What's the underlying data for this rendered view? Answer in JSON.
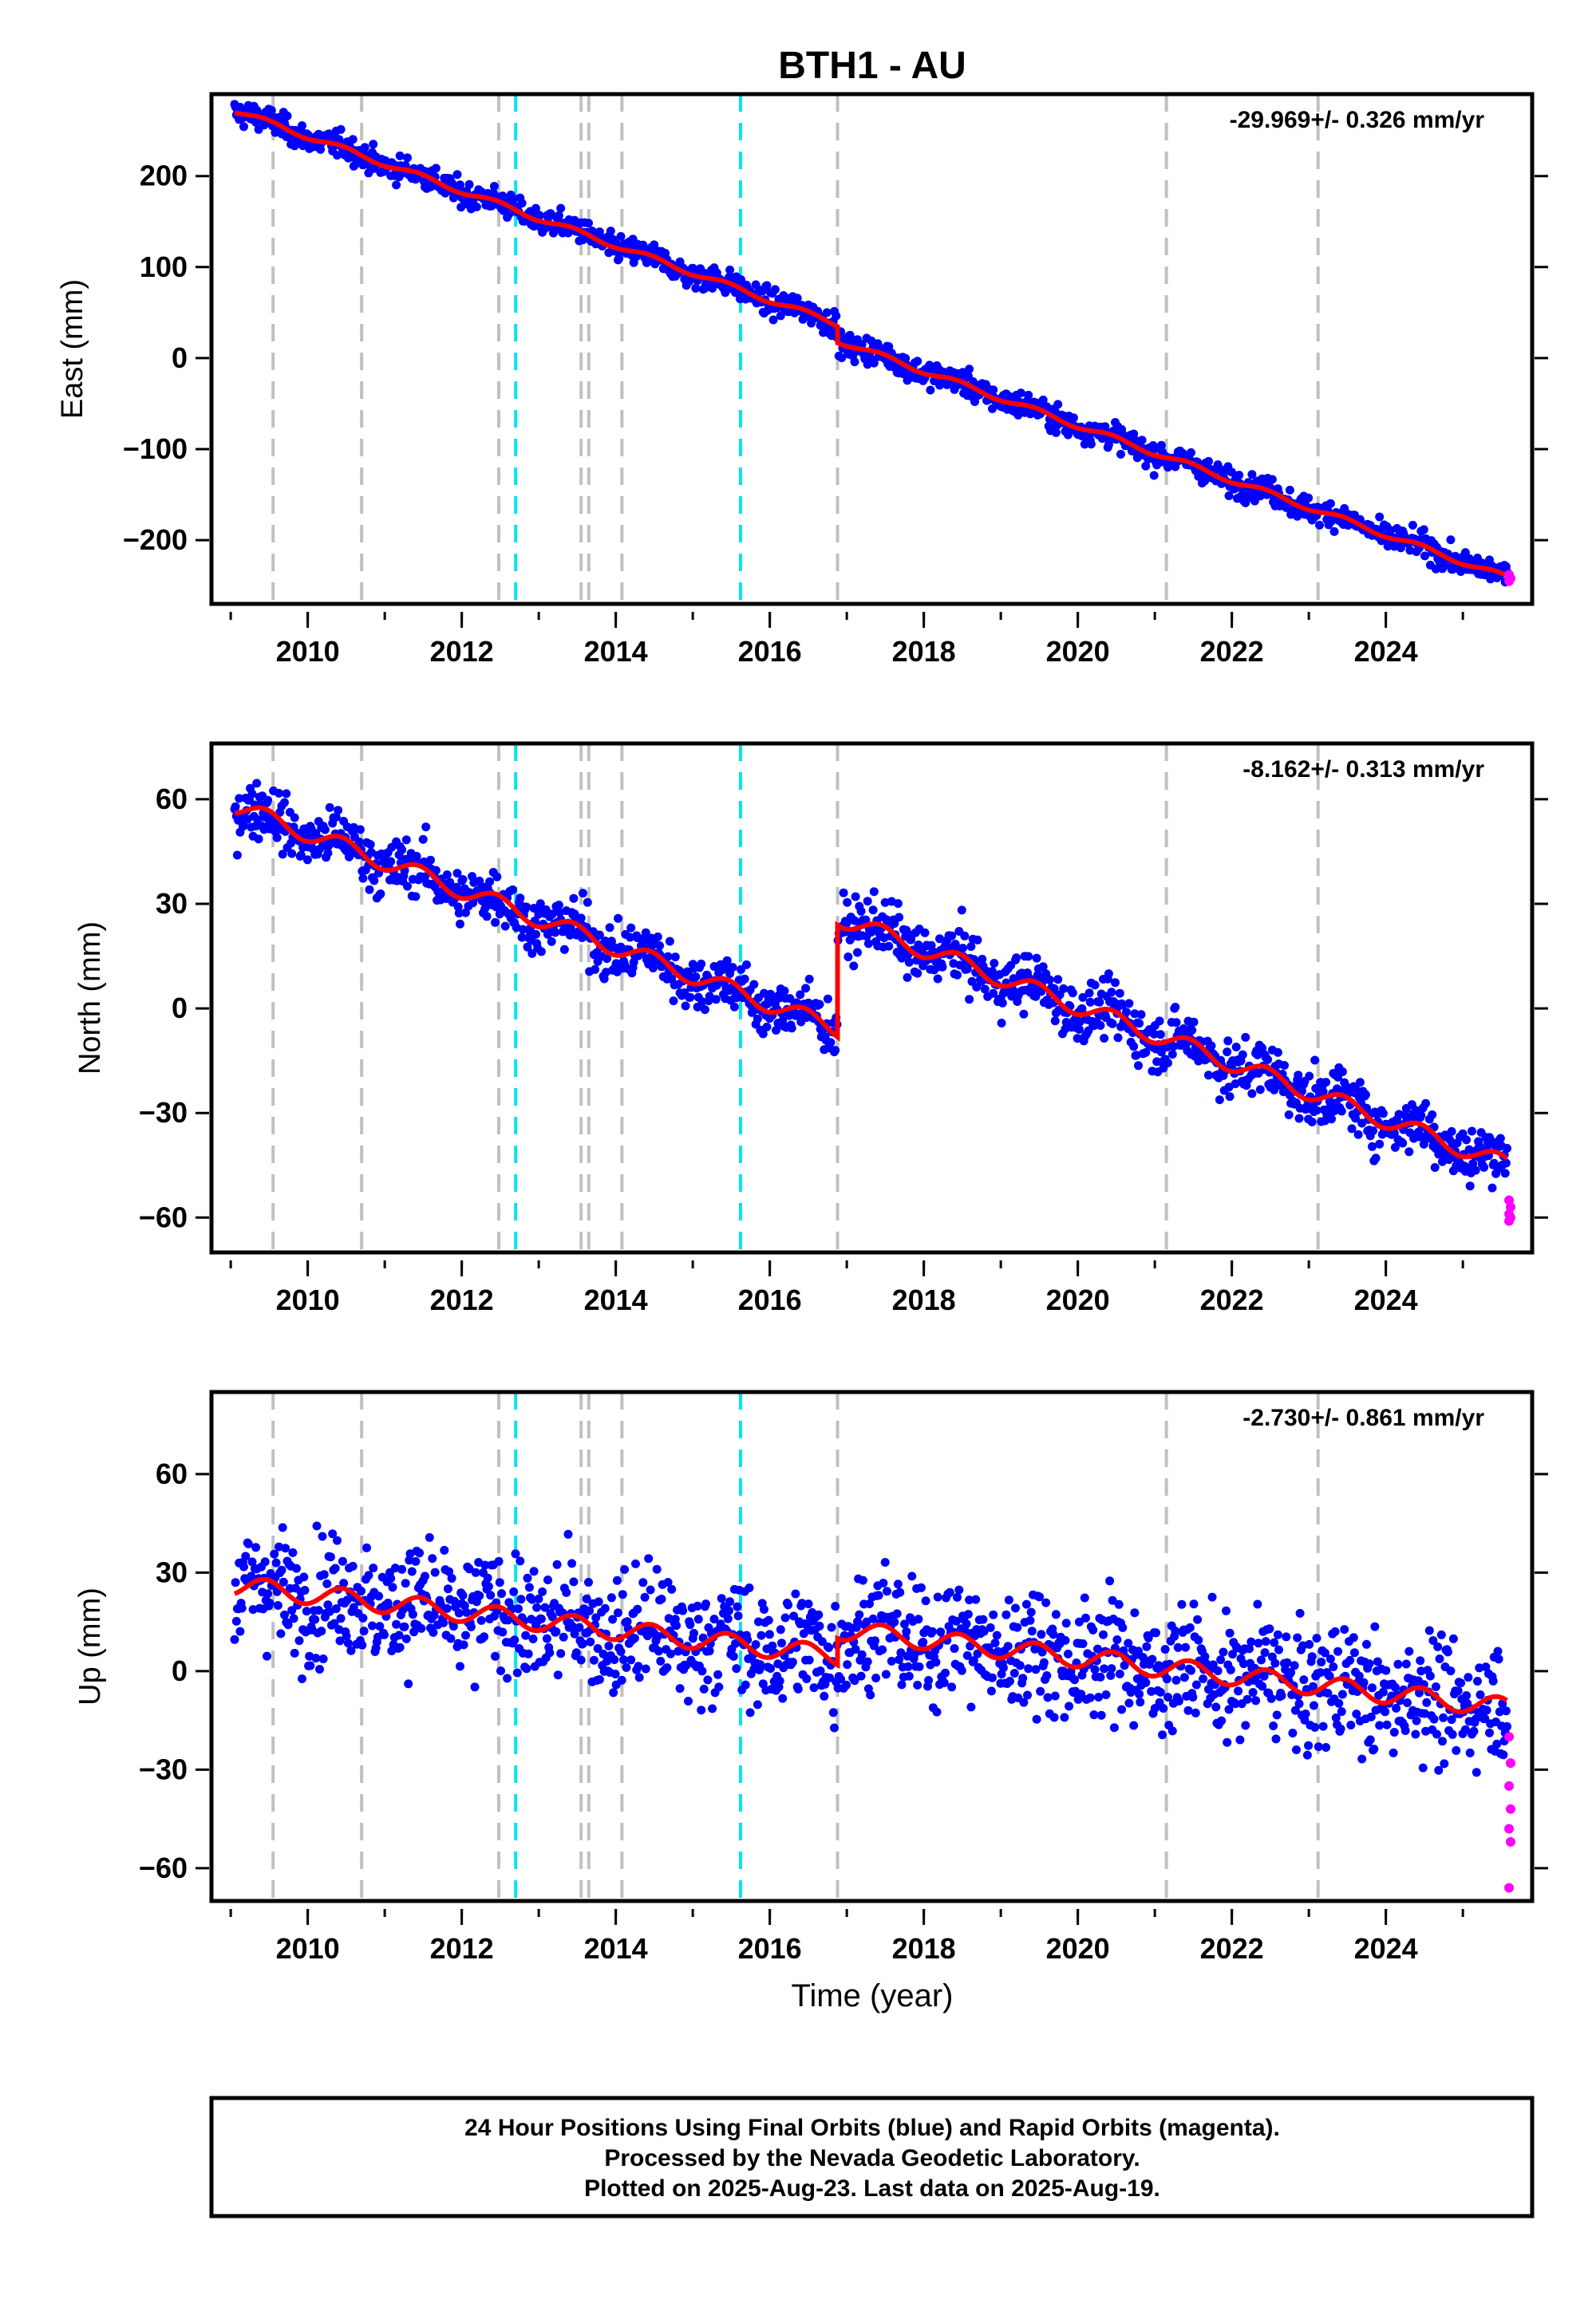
{
  "title": "BTH1 - AU",
  "xlabel": "Time (year)",
  "colors": {
    "final_orbits": "#0000ff",
    "rapid_orbits": "#ff00ff",
    "model": "#ff0000",
    "event_line": "#c0c0c0",
    "equipment_line": "#00e5ee"
  },
  "footnote": [
    "24 Hour Positions Using Final Orbits (blue) and Rapid Orbits (magenta).",
    "Processed by the Nevada Geodetic Laboratory.",
    "Plotted on 2025-Aug-23. Last data on 2025-Aug-19."
  ],
  "chart_data": [
    {
      "type": "scatter",
      "title": "BTH1 - AU",
      "ylabel": "East (mm)",
      "rate_label": "-29.969+/- 0.326 mm/yr",
      "xlim": [
        2008.75,
        2025.9
      ],
      "ylim": [
        -270,
        290
      ],
      "yticks": [
        -200,
        -100,
        0,
        100,
        200
      ],
      "xticks": [
        2010,
        2012,
        2014,
        2016,
        2018,
        2020,
        2022,
        2024
      ],
      "event_lines_gray": [
        2009.55,
        2010.7,
        2012.48,
        2013.55,
        2013.65,
        2014.08,
        2016.88,
        2021.15,
        2023.12
      ],
      "event_lines_cyan": [
        2012.7,
        2015.62
      ],
      "model": {
        "start_year": 2009.05,
        "start_value": 272,
        "rate": -29.969,
        "offset_year": 2016.88,
        "offset": -18,
        "seasonal_amp": 3,
        "noise": 7
      },
      "rapid_tail": [
        -238,
        -242,
        -245
      ],
      "grid": false,
      "legend": "none"
    },
    {
      "type": "scatter",
      "ylabel": "North (mm)",
      "rate_label": "-8.162+/- 0.313 mm/yr",
      "xlim": [
        2008.75,
        2025.9
      ],
      "ylim": [
        -70,
        76
      ],
      "yticks": [
        -60,
        -30,
        0,
        30,
        60
      ],
      "xticks": [
        2010,
        2012,
        2014,
        2016,
        2018,
        2020,
        2022,
        2024
      ],
      "event_lines_gray": [
        2009.55,
        2010.7,
        2012.48,
        2013.55,
        2013.65,
        2014.08,
        2016.88,
        2021.15,
        2023.12
      ],
      "event_lines_cyan": [
        2012.7,
        2015.62
      ],
      "model": {
        "start_year": 2009.05,
        "start_value": 58,
        "rate": -8.162,
        "offset_year": 2016.88,
        "offset": 32,
        "seasonal_amp": 2.5,
        "noise": 4
      },
      "rapid_tail": [
        -55,
        -57,
        -59,
        -60,
        -61
      ],
      "grid": false,
      "legend": "none"
    },
    {
      "type": "scatter",
      "ylabel": "Up (mm)",
      "rate_label": "-2.730+/- 0.861 mm/yr",
      "xlim": [
        2008.75,
        2025.9
      ],
      "ylim": [
        -70,
        85
      ],
      "yticks": [
        -60,
        -30,
        0,
        30,
        60
      ],
      "xticks": [
        2010,
        2012,
        2014,
        2016,
        2018,
        2020,
        2022,
        2024
      ],
      "event_lines_gray": [
        2009.55,
        2010.7,
        2012.48,
        2013.55,
        2013.65,
        2014.08,
        2016.88,
        2021.15,
        2023.12
      ],
      "event_lines_cyan": [
        2012.7,
        2015.62
      ],
      "model": {
        "start_year": 2009.05,
        "start_value": 26,
        "rate": -2.73,
        "offset_year": 2016.88,
        "offset": 8,
        "seasonal_amp": 3,
        "noise": 9
      },
      "rapid_tail": [
        -20,
        -28,
        -35,
        -42,
        -48,
        -52,
        -66
      ],
      "grid": false,
      "legend": "none"
    }
  ]
}
